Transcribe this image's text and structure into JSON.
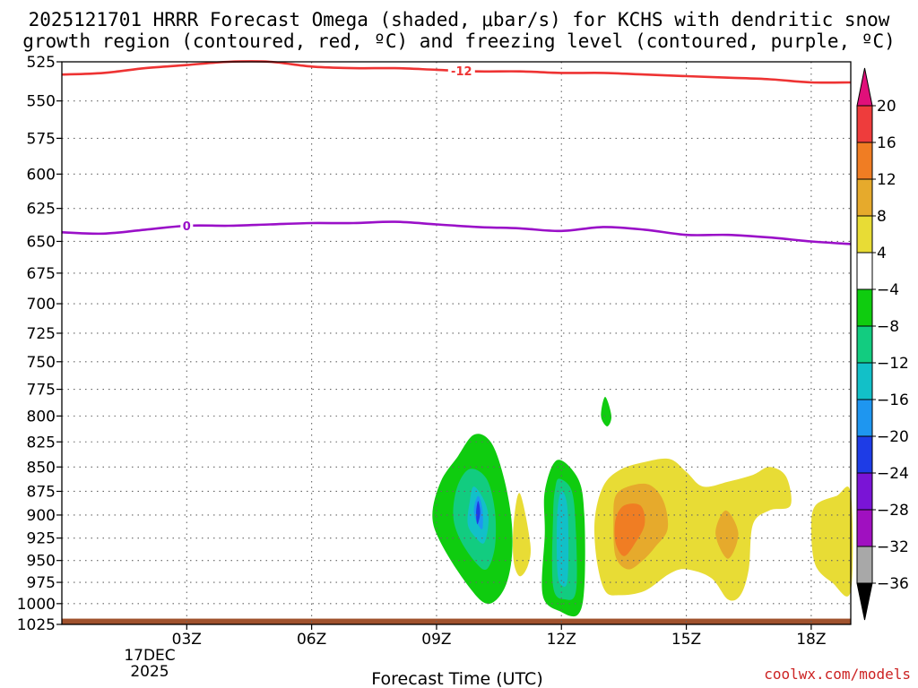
{
  "chart_data": {
    "type": "contour",
    "title_line1": "2025121701 HRRR Forecast Omega (shaded, μbar/s) for KCHS with dendritic snow",
    "title_line2": "growth region (contoured, red, ºC) and freezing level (contoured, purple, ºC)",
    "xlabel": "Forecast Time (UTC)",
    "watermark": "coolwx.com/models",
    "watermark_color": "#cc2222",
    "x_hours": [
      3,
      6,
      9,
      12,
      15,
      18
    ],
    "x_tick_labels": [
      "03Z",
      "06Z",
      "09Z",
      "12Z",
      "15Z",
      "18Z"
    ],
    "x_date_label": "17DEC",
    "x_year_label": "2025",
    "xlim_hours": [
      0,
      18.95
    ],
    "y_levels": [
      525,
      550,
      575,
      600,
      625,
      650,
      675,
      700,
      725,
      750,
      775,
      800,
      825,
      850,
      875,
      900,
      925,
      950,
      975,
      1000,
      1025
    ],
    "ylim_hPa": [
      525,
      1025
    ],
    "y_scale": "log-pressure",
    "grid": "dotted",
    "colorbar": {
      "labels": [
        "20",
        "16",
        "12",
        "8",
        "4",
        "−4",
        "−8",
        "−12",
        "−16",
        "−20",
        "−24",
        "−28",
        "−32",
        "−36"
      ],
      "bins": [
        {
          "min": 20,
          "max": null,
          "color": "#e0107a"
        },
        {
          "min": 16,
          "max": 20,
          "color": "#ee3c3c"
        },
        {
          "min": 12,
          "max": 16,
          "color": "#f07d23"
        },
        {
          "min": 8,
          "max": 12,
          "color": "#e6aa2c"
        },
        {
          "min": 4,
          "max": 8,
          "color": "#e8dc35"
        },
        {
          "min": -4,
          "max": 4,
          "color": "#ffffff"
        },
        {
          "min": -8,
          "max": -4,
          "color": "#0fcc0f"
        },
        {
          "min": -12,
          "max": -8,
          "color": "#12cc80"
        },
        {
          "min": -16,
          "max": -12,
          "color": "#12c0c8"
        },
        {
          "min": -20,
          "max": -16,
          "color": "#1e96f0"
        },
        {
          "min": -24,
          "max": -20,
          "color": "#1e3ce6"
        },
        {
          "min": -28,
          "max": -24,
          "color": "#7a14d6"
        },
        {
          "min": -32,
          "max": -28,
          "color": "#a010c0"
        },
        {
          "min": -36,
          "max": -32,
          "color": "#a8a8a8"
        },
        {
          "min": null,
          "max": -36,
          "color": "#000000"
        }
      ]
    },
    "red_contour": {
      "value": -12,
      "label": "-12",
      "color": "#ee3333",
      "points": [
        [
          0,
          533
        ],
        [
          1,
          532
        ],
        [
          2,
          529
        ],
        [
          3,
          527
        ],
        [
          4,
          525
        ],
        [
          5,
          525
        ],
        [
          6,
          528
        ],
        [
          7,
          529
        ],
        [
          8,
          529
        ],
        [
          9,
          530
        ],
        [
          10,
          531
        ],
        [
          11,
          531
        ],
        [
          12,
          532
        ],
        [
          13,
          532
        ],
        [
          14,
          533
        ],
        [
          15,
          534
        ],
        [
          16,
          535
        ],
        [
          17,
          536
        ],
        [
          18,
          538
        ],
        [
          18.95,
          538
        ]
      ]
    },
    "purple_contour": {
      "value": 0,
      "label": "0",
      "color": "#9a10c8",
      "points": [
        [
          0,
          643
        ],
        [
          1,
          644
        ],
        [
          2,
          641
        ],
        [
          3,
          638
        ],
        [
          4,
          638
        ],
        [
          5,
          637
        ],
        [
          6,
          636
        ],
        [
          7,
          636
        ],
        [
          8,
          635
        ],
        [
          9,
          637
        ],
        [
          10,
          639
        ],
        [
          11,
          640
        ],
        [
          12,
          642
        ],
        [
          13,
          639
        ],
        [
          14,
          641
        ],
        [
          15,
          645
        ],
        [
          16,
          645
        ],
        [
          17,
          647
        ],
        [
          18,
          650
        ],
        [
          18.95,
          652
        ]
      ]
    },
    "omega_regions": [
      {
        "bin": -8,
        "points": [
          [
            9.5,
            840
          ],
          [
            9.9,
            818
          ],
          [
            10.3,
            825
          ],
          [
            10.6,
            858
          ],
          [
            10.8,
            905
          ],
          [
            10.8,
            950
          ],
          [
            10.6,
            985
          ],
          [
            10.2,
            1000
          ],
          [
            9.7,
            975
          ],
          [
            9.1,
            930
          ],
          [
            8.9,
            900
          ],
          [
            9.1,
            865
          ]
        ]
      },
      {
        "bin": -12,
        "points": [
          [
            9.8,
            852
          ],
          [
            10.2,
            862
          ],
          [
            10.4,
            895
          ],
          [
            10.4,
            935
          ],
          [
            10.2,
            960
          ],
          [
            9.9,
            950
          ],
          [
            9.55,
            925
          ],
          [
            9.4,
            900
          ],
          [
            9.5,
            870
          ]
        ]
      },
      {
        "bin": -16,
        "points": [
          [
            9.9,
            870
          ],
          [
            10.15,
            885
          ],
          [
            10.25,
            905
          ],
          [
            10.15,
            930
          ],
          [
            9.95,
            925
          ],
          [
            9.75,
            910
          ],
          [
            9.8,
            885
          ]
        ]
      },
      {
        "bin": -20,
        "points": [
          [
            10.0,
            880
          ],
          [
            10.1,
            893
          ],
          [
            10.1,
            915
          ],
          [
            9.95,
            906
          ],
          [
            9.9,
            893
          ]
        ]
      },
      {
        "bin": -24,
        "points": [
          [
            10.0,
            885
          ],
          [
            10.05,
            898
          ],
          [
            9.98,
            910
          ],
          [
            9.95,
            897
          ]
        ]
      },
      {
        "bin": 4,
        "points": [
          [
            11.0,
            877
          ],
          [
            11.25,
            930
          ],
          [
            11.2,
            955
          ],
          [
            11.0,
            968
          ],
          [
            10.85,
            950
          ],
          [
            10.85,
            910
          ]
        ]
      },
      {
        "bin": -8,
        "points": [
          [
            11.9,
            843
          ],
          [
            12.4,
            862
          ],
          [
            12.55,
            900
          ],
          [
            12.55,
            980
          ],
          [
            12.4,
            1013
          ],
          [
            12.0,
            1010
          ],
          [
            11.55,
            990
          ],
          [
            11.6,
            920
          ],
          [
            11.6,
            875
          ]
        ]
      },
      {
        "bin": -12,
        "points": [
          [
            11.95,
            862
          ],
          [
            12.25,
            875
          ],
          [
            12.35,
            920
          ],
          [
            12.35,
            985
          ],
          [
            12.1,
            995
          ],
          [
            11.8,
            980
          ],
          [
            11.8,
            900
          ],
          [
            11.85,
            872
          ]
        ]
      },
      {
        "bin": -16,
        "points": [
          [
            12.0,
            875
          ],
          [
            12.15,
            895
          ],
          [
            12.15,
            970
          ],
          [
            12.0,
            978
          ],
          [
            11.9,
            960
          ],
          [
            11.9,
            900
          ]
        ]
      },
      {
        "bin": -8,
        "points": [
          [
            13.05,
            782
          ],
          [
            13.2,
            800
          ],
          [
            13.1,
            810
          ],
          [
            12.95,
            800
          ]
        ]
      },
      {
        "bin": 4,
        "points": [
          [
            13.4,
            853
          ],
          [
            14.0,
            845
          ],
          [
            14.6,
            842
          ],
          [
            15.0,
            855
          ],
          [
            15.4,
            870
          ],
          [
            16.0,
            865
          ],
          [
            16.6,
            858
          ],
          [
            17.0,
            850
          ],
          [
            17.4,
            860
          ],
          [
            17.5,
            890
          ],
          [
            17.0,
            895
          ],
          [
            16.6,
            910
          ],
          [
            16.5,
            960
          ],
          [
            16.3,
            990
          ],
          [
            16.0,
            995
          ],
          [
            15.6,
            970
          ],
          [
            15.0,
            960
          ],
          [
            14.6,
            965
          ],
          [
            14.0,
            985
          ],
          [
            13.4,
            990
          ],
          [
            13.05,
            985
          ],
          [
            12.85,
            950
          ],
          [
            12.8,
            905
          ],
          [
            13.0,
            870
          ]
        ]
      },
      {
        "bin": 8,
        "points": [
          [
            13.6,
            870
          ],
          [
            14.1,
            868
          ],
          [
            14.45,
            885
          ],
          [
            14.55,
            915
          ],
          [
            14.25,
            935
          ],
          [
            13.95,
            950
          ],
          [
            13.6,
            960
          ],
          [
            13.3,
            945
          ],
          [
            13.25,
            905
          ],
          [
            13.3,
            880
          ]
        ]
      },
      {
        "bin": 12,
        "points": [
          [
            13.5,
            890
          ],
          [
            13.9,
            890
          ],
          [
            14.0,
            910
          ],
          [
            13.75,
            932
          ],
          [
            13.5,
            945
          ],
          [
            13.3,
            930
          ],
          [
            13.3,
            905
          ]
        ]
      },
      {
        "bin": 8,
        "points": [
          [
            15.95,
            895
          ],
          [
            16.25,
            920
          ],
          [
            16.0,
            948
          ],
          [
            15.7,
            920
          ]
        ]
      },
      {
        "bin": 4,
        "points": [
          [
            18.95,
            877
          ],
          [
            18.6,
            880
          ],
          [
            18.1,
            890
          ],
          [
            18.0,
            915
          ],
          [
            18.1,
            955
          ],
          [
            18.5,
            975
          ],
          [
            18.95,
            985
          ]
        ]
      }
    ],
    "ground_bar": {
      "top_hPa": 1018,
      "color": "#a0522d"
    }
  }
}
